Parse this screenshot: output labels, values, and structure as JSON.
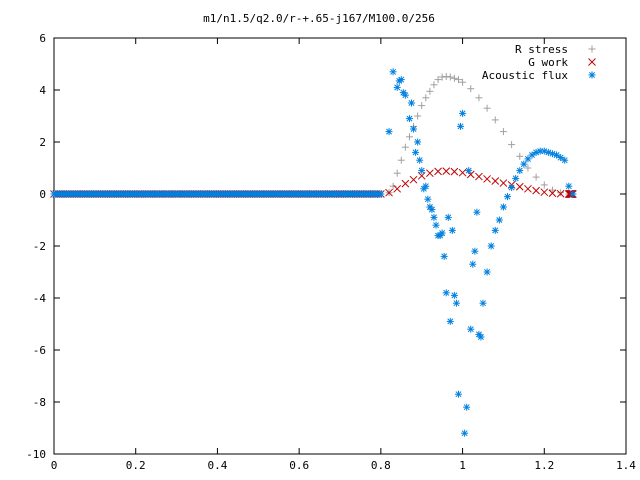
{
  "chart_data": {
    "type": "scatter",
    "title": "m1/n1.5/q2.0/r-+.65-j167/M100.0/256",
    "xlabel": "",
    "ylabel": "",
    "xlim": [
      0,
      1.4
    ],
    "ylim": [
      -10,
      6
    ],
    "x_ticks": [
      "0",
      "0.2",
      "0.4",
      "0.6",
      "0.8",
      "1",
      "1.2",
      "1.4"
    ],
    "y_ticks": [
      "6",
      "4",
      "2",
      "0",
      "-2",
      "-4",
      "-6",
      "-8",
      "-10"
    ],
    "grid": false,
    "legend_position": "top-right",
    "series": [
      {
        "name": "R stress",
        "marker": "plus",
        "color": "#a0a0a0",
        "points": [
          [
            0.0,
            0
          ],
          [
            0.1,
            0
          ],
          [
            0.2,
            0
          ],
          [
            0.3,
            0
          ],
          [
            0.4,
            0
          ],
          [
            0.5,
            0
          ],
          [
            0.6,
            0
          ],
          [
            0.7,
            0
          ],
          [
            0.8,
            0
          ],
          [
            0.82,
            0.05
          ],
          [
            0.83,
            0.3
          ],
          [
            0.84,
            0.8
          ],
          [
            0.85,
            1.3
          ],
          [
            0.86,
            1.8
          ],
          [
            0.87,
            2.2
          ],
          [
            0.88,
            2.6
          ],
          [
            0.89,
            3.0
          ],
          [
            0.9,
            3.4
          ],
          [
            0.91,
            3.7
          ],
          [
            0.92,
            3.95
          ],
          [
            0.93,
            4.2
          ],
          [
            0.94,
            4.4
          ],
          [
            0.95,
            4.5
          ],
          [
            0.96,
            4.52
          ],
          [
            0.97,
            4.5
          ],
          [
            0.98,
            4.45
          ],
          [
            0.99,
            4.4
          ],
          [
            1.0,
            4.3
          ],
          [
            1.02,
            4.05
          ],
          [
            1.04,
            3.7
          ],
          [
            1.06,
            3.3
          ],
          [
            1.08,
            2.85
          ],
          [
            1.1,
            2.4
          ],
          [
            1.12,
            1.9
          ],
          [
            1.14,
            1.45
          ],
          [
            1.16,
            1.0
          ],
          [
            1.18,
            0.65
          ],
          [
            1.2,
            0.35
          ],
          [
            1.22,
            0.15
          ],
          [
            1.24,
            0.05
          ],
          [
            1.26,
            0.0
          ],
          [
            1.27,
            0.0
          ]
        ]
      },
      {
        "name": "G work",
        "marker": "cross",
        "color": "#c00000",
        "points": [
          [
            0.0,
            0
          ],
          [
            0.1,
            0
          ],
          [
            0.2,
            0
          ],
          [
            0.3,
            0
          ],
          [
            0.4,
            0
          ],
          [
            0.5,
            0
          ],
          [
            0.6,
            0
          ],
          [
            0.7,
            0
          ],
          [
            0.8,
            0
          ],
          [
            0.82,
            0.05
          ],
          [
            0.84,
            0.2
          ],
          [
            0.86,
            0.4
          ],
          [
            0.88,
            0.55
          ],
          [
            0.9,
            0.7
          ],
          [
            0.92,
            0.8
          ],
          [
            0.94,
            0.87
          ],
          [
            0.96,
            0.88
          ],
          [
            0.98,
            0.86
          ],
          [
            1.0,
            0.82
          ],
          [
            1.02,
            0.75
          ],
          [
            1.04,
            0.67
          ],
          [
            1.06,
            0.58
          ],
          [
            1.08,
            0.5
          ],
          [
            1.1,
            0.42
          ],
          [
            1.12,
            0.35
          ],
          [
            1.14,
            0.28
          ],
          [
            1.16,
            0.2
          ],
          [
            1.18,
            0.13
          ],
          [
            1.2,
            0.07
          ],
          [
            1.22,
            0.03
          ],
          [
            1.24,
            0.01
          ],
          [
            1.26,
            0.0
          ],
          [
            1.27,
            0.0
          ]
        ]
      },
      {
        "name": "Acoustic flux",
        "marker": "star",
        "color": "#0080e0",
        "points": [
          [
            0.0,
            0
          ],
          [
            0.08,
            0
          ],
          [
            0.16,
            0
          ],
          [
            0.24,
            0
          ],
          [
            0.32,
            0
          ],
          [
            0.4,
            0
          ],
          [
            0.48,
            0
          ],
          [
            0.56,
            0
          ],
          [
            0.64,
            0
          ],
          [
            0.72,
            0
          ],
          [
            0.8,
            0
          ],
          [
            0.82,
            2.4
          ],
          [
            0.83,
            4.7
          ],
          [
            0.84,
            4.1
          ],
          [
            0.845,
            4.35
          ],
          [
            0.85,
            4.4
          ],
          [
            0.855,
            3.9
          ],
          [
            0.86,
            3.8
          ],
          [
            0.87,
            2.9
          ],
          [
            0.875,
            3.5
          ],
          [
            0.88,
            2.5
          ],
          [
            0.885,
            1.6
          ],
          [
            0.89,
            2.0
          ],
          [
            0.895,
            1.3
          ],
          [
            0.9,
            0.9
          ],
          [
            0.905,
            0.2
          ],
          [
            0.91,
            0.3
          ],
          [
            0.915,
            -0.2
          ],
          [
            0.92,
            -0.5
          ],
          [
            0.925,
            -0.6
          ],
          [
            0.93,
            -0.9
          ],
          [
            0.935,
            -1.2
          ],
          [
            0.94,
            -1.6
          ],
          [
            0.945,
            -1.6
          ],
          [
            0.95,
            -1.5
          ],
          [
            0.955,
            -2.4
          ],
          [
            0.96,
            -3.8
          ],
          [
            0.965,
            -0.9
          ],
          [
            0.97,
            -4.9
          ],
          [
            0.975,
            -1.4
          ],
          [
            0.98,
            -3.9
          ],
          [
            0.985,
            -4.2
          ],
          [
            0.99,
            -7.7
          ],
          [
            0.995,
            2.6
          ],
          [
            1.0,
            3.1
          ],
          [
            1.005,
            -9.2
          ],
          [
            1.01,
            -8.2
          ],
          [
            1.015,
            0.9
          ],
          [
            1.02,
            -5.2
          ],
          [
            1.025,
            -2.7
          ],
          [
            1.03,
            -2.2
          ],
          [
            1.035,
            -0.7
          ],
          [
            1.04,
            -5.4
          ],
          [
            1.045,
            -5.5
          ],
          [
            1.05,
            -4.2
          ],
          [
            1.06,
            -3.0
          ],
          [
            1.07,
            -2.0
          ],
          [
            1.08,
            -1.4
          ],
          [
            1.09,
            -1.0
          ],
          [
            1.1,
            -0.5
          ],
          [
            1.11,
            -0.1
          ],
          [
            1.12,
            0.25
          ],
          [
            1.13,
            0.6
          ],
          [
            1.14,
            0.9
          ],
          [
            1.15,
            1.15
          ],
          [
            1.16,
            1.35
          ],
          [
            1.17,
            1.5
          ],
          [
            1.18,
            1.6
          ],
          [
            1.19,
            1.65
          ],
          [
            1.2,
            1.65
          ],
          [
            1.21,
            1.6
          ],
          [
            1.22,
            1.55
          ],
          [
            1.23,
            1.5
          ],
          [
            1.24,
            1.4
          ],
          [
            1.25,
            1.3
          ],
          [
            1.26,
            0.3
          ],
          [
            1.27,
            0.0
          ]
        ]
      }
    ]
  }
}
